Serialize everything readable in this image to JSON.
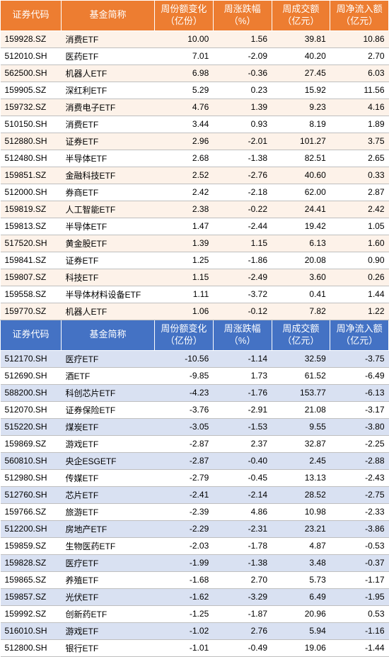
{
  "columns": {
    "code": "证券代码",
    "name": "基金简称",
    "share_change": "周份额变化（亿份）",
    "pct_change": "周涨跌幅（%）",
    "turnover": "周成交额（亿元）",
    "net_inflow": "周净流入额（亿元）"
  },
  "top_header_bg": "#ed7d31",
  "mid_header_bg": "#4472c4",
  "top_stripe": "#fdf2e9",
  "bottom_stripe": "#d9e1f2",
  "top": [
    {
      "code": "159928.SZ",
      "name": "消费ETF",
      "share": "10.00",
      "pct": "1.56",
      "turn": "39.81",
      "net": "10.86"
    },
    {
      "code": "512010.SH",
      "name": "医药ETF",
      "share": "7.01",
      "pct": "-2.09",
      "turn": "40.20",
      "net": "2.70"
    },
    {
      "code": "562500.SH",
      "name": "机器人ETF",
      "share": "6.98",
      "pct": "-0.36",
      "turn": "27.45",
      "net": "6.03"
    },
    {
      "code": "159905.SZ",
      "name": "深红利ETF",
      "share": "5.29",
      "pct": "0.23",
      "turn": "15.92",
      "net": "11.56"
    },
    {
      "code": "159732.SZ",
      "name": "消费电子ETF",
      "share": "4.76",
      "pct": "1.39",
      "turn": "9.23",
      "net": "4.16"
    },
    {
      "code": "510150.SH",
      "name": "消费ETF",
      "share": "3.44",
      "pct": "0.93",
      "turn": "8.19",
      "net": "1.89"
    },
    {
      "code": "512880.SH",
      "name": "证券ETF",
      "share": "2.96",
      "pct": "-2.01",
      "turn": "101.27",
      "net": "3.75"
    },
    {
      "code": "512480.SH",
      "name": "半导体ETF",
      "share": "2.68",
      "pct": "-1.38",
      "turn": "82.51",
      "net": "2.65"
    },
    {
      "code": "159851.SZ",
      "name": "金融科技ETF",
      "share": "2.52",
      "pct": "-2.76",
      "turn": "40.60",
      "net": "0.33"
    },
    {
      "code": "512000.SH",
      "name": "券商ETF",
      "share": "2.42",
      "pct": "-2.18",
      "turn": "62.00",
      "net": "2.87"
    },
    {
      "code": "159819.SZ",
      "name": "人工智能ETF",
      "share": "2.38",
      "pct": "-0.22",
      "turn": "24.41",
      "net": "2.42"
    },
    {
      "code": "159813.SZ",
      "name": "半导体ETF",
      "share": "1.47",
      "pct": "-2.44",
      "turn": "19.42",
      "net": "1.05"
    },
    {
      "code": "517520.SH",
      "name": "黄金股ETF",
      "share": "1.39",
      "pct": "1.15",
      "turn": "6.13",
      "net": "1.60"
    },
    {
      "code": "159841.SZ",
      "name": "证券ETF",
      "share": "1.25",
      "pct": "-1.86",
      "turn": "20.08",
      "net": "0.90"
    },
    {
      "code": "159807.SZ",
      "name": "科技ETF",
      "share": "1.15",
      "pct": "-2.49",
      "turn": "3.60",
      "net": "0.26"
    },
    {
      "code": "159558.SZ",
      "name": "半导体材料设备ETF",
      "share": "1.11",
      "pct": "-3.72",
      "turn": "0.41",
      "net": "1.44"
    },
    {
      "code": "159770.SZ",
      "name": "机器人ETF",
      "share": "1.06",
      "pct": "-0.12",
      "turn": "7.82",
      "net": "1.22"
    }
  ],
  "bottom": [
    {
      "code": "512170.SH",
      "name": "医疗ETF",
      "share": "-10.56",
      "pct": "-1.14",
      "turn": "32.59",
      "net": "-3.75"
    },
    {
      "code": "512690.SH",
      "name": "酒ETF",
      "share": "-9.85",
      "pct": "1.73",
      "turn": "61.52",
      "net": "-6.49"
    },
    {
      "code": "588200.SH",
      "name": "科创芯片ETF",
      "share": "-4.23",
      "pct": "-1.76",
      "turn": "153.77",
      "net": "-6.13"
    },
    {
      "code": "512070.SH",
      "name": "证券保险ETF",
      "share": "-3.76",
      "pct": "-2.91",
      "turn": "21.08",
      "net": "-3.17"
    },
    {
      "code": "515220.SH",
      "name": "煤炭ETF",
      "share": "-3.05",
      "pct": "-1.53",
      "turn": "9.55",
      "net": "-3.80"
    },
    {
      "code": "159869.SZ",
      "name": "游戏ETF",
      "share": "-2.87",
      "pct": "2.37",
      "turn": "32.87",
      "net": "-2.25"
    },
    {
      "code": "560810.SH",
      "name": "央企ESGETF",
      "share": "-2.87",
      "pct": "-0.40",
      "turn": "2.45",
      "net": "-2.88"
    },
    {
      "code": "512980.SH",
      "name": "传媒ETF",
      "share": "-2.79",
      "pct": "-0.45",
      "turn": "13.13",
      "net": "-2.43"
    },
    {
      "code": "512760.SH",
      "name": "芯片ETF",
      "share": "-2.41",
      "pct": "-2.14",
      "turn": "28.52",
      "net": "-2.75"
    },
    {
      "code": "159766.SZ",
      "name": "旅游ETF",
      "share": "-2.39",
      "pct": "4.86",
      "turn": "10.98",
      "net": "-2.33"
    },
    {
      "code": "512200.SH",
      "name": "房地产ETF",
      "share": "-2.29",
      "pct": "-2.31",
      "turn": "23.21",
      "net": "-3.86"
    },
    {
      "code": "159859.SZ",
      "name": "生物医药ETF",
      "share": "-2.03",
      "pct": "-1.78",
      "turn": "4.87",
      "net": "-0.53"
    },
    {
      "code": "159828.SZ",
      "name": "医疗ETF",
      "share": "-1.99",
      "pct": "-1.38",
      "turn": "3.48",
      "net": "-0.37"
    },
    {
      "code": "159865.SZ",
      "name": "养殖ETF",
      "share": "-1.68",
      "pct": "2.70",
      "turn": "5.73",
      "net": "-1.17"
    },
    {
      "code": "159857.SZ",
      "name": "光伏ETF",
      "share": "-1.62",
      "pct": "-3.29",
      "turn": "6.49",
      "net": "-1.95"
    },
    {
      "code": "159992.SZ",
      "name": "创新药ETF",
      "share": "-1.25",
      "pct": "-1.87",
      "turn": "20.96",
      "net": "0.53"
    },
    {
      "code": "516010.SH",
      "name": "游戏ETF",
      "share": "-1.02",
      "pct": "2.76",
      "turn": "5.94",
      "net": "-1.16"
    },
    {
      "code": "512800.SH",
      "name": "银行ETF",
      "share": "-1.01",
      "pct": "-0.49",
      "turn": "19.06",
      "net": "-1.44"
    }
  ]
}
